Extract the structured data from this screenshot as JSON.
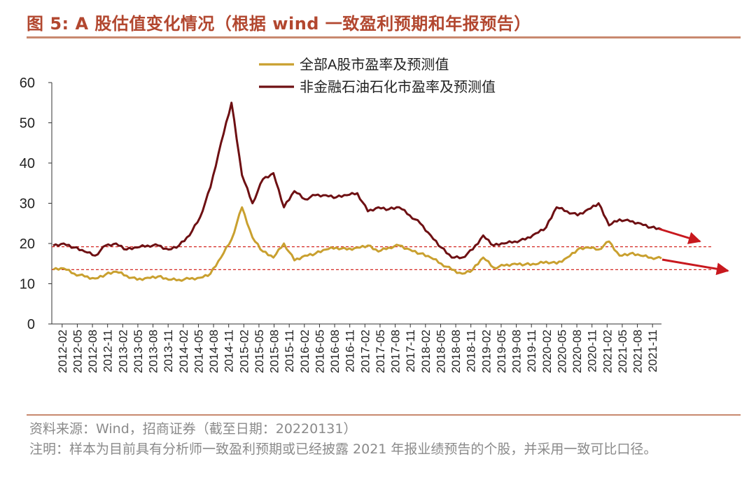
{
  "header": {
    "title": "图 5:  A 股估值变化情况（根据 wind 一致盈利预期和年报预告）"
  },
  "footer": {
    "source": "资料来源：Wind，招商证券（截至日期：20220131）",
    "note": "注明：样本为目前具有分析师一致盈利预期或已经披露 2021 年报业绩预告的个股，并采用一致可比口径。"
  },
  "colors": {
    "series_all_a": "#C9A02F",
    "series_non_fin": "#6E1013",
    "guide_line": "#D42A25",
    "arrow": "#C8181E",
    "accent": "#B2472F"
  },
  "chart_data": {
    "type": "line",
    "title": "",
    "xlabel": "",
    "ylabel": "",
    "ylim": [
      0,
      60
    ],
    "yticks": [
      0,
      10,
      20,
      30,
      40,
      50,
      60
    ],
    "legend_position": "top-center",
    "grid": false,
    "x_tick_labels": [
      "2012-02",
      "2012-05",
      "2012-08",
      "2012-11",
      "2013-02",
      "2013-05",
      "2013-08",
      "2013-11",
      "2014-02",
      "2014-05",
      "2014-08",
      "2014-11",
      "2015-02",
      "2015-05",
      "2015-08",
      "2015-11",
      "2016-02",
      "2016-05",
      "2016-08",
      "2016-11",
      "2017-02",
      "2017-05",
      "2017-08",
      "2017-11",
      "2018-02",
      "2018-05",
      "2018-08",
      "2018-11",
      "2019-02",
      "2019-05",
      "2019-08",
      "2019-11",
      "2020-02",
      "2020-05",
      "2020-08",
      "2020-11",
      "2021-02",
      "2021-05",
      "2021-08",
      "2021-11"
    ],
    "reference_lines": [
      19.2,
      13.5
    ],
    "series": [
      {
        "name": "全部A股市盈率及预测值",
        "values": [
          13.5,
          13.8,
          12.5,
          11.8,
          11.3,
          12.3,
          13.0,
          12.0,
          11.0,
          11.5,
          11.8,
          11.0,
          11.0,
          11.2,
          11.5,
          12.5,
          16.5,
          21.0,
          29.0,
          21.5,
          18.0,
          16.5,
          20.0,
          15.8,
          17.0,
          17.5,
          18.5,
          19.0,
          18.5,
          19.0,
          19.5,
          18.0,
          19.0,
          19.5,
          18.5,
          17.5,
          16.5,
          15.0,
          13.5,
          12.5,
          13.5,
          16.5,
          14.0,
          14.5,
          15.0,
          14.8,
          14.8,
          15.5,
          15.0,
          16.5,
          18.5,
          19.0,
          18.5,
          20.5,
          17.0,
          17.5,
          17.0,
          16.5,
          16.3
        ],
        "color": "#C9A02F"
      },
      {
        "name": "非金融石油石化市盈率及预测值",
        "values": [
          19.5,
          20.0,
          19.0,
          18.0,
          17.0,
          19.5,
          20.0,
          18.5,
          19.0,
          19.5,
          19.5,
          18.5,
          19.5,
          22.0,
          26.5,
          34.0,
          45.0,
          55.0,
          37.0,
          30.0,
          36.0,
          37.5,
          29.0,
          33.0,
          31.0,
          32.0,
          32.0,
          31.5,
          32.0,
          32.5,
          28.0,
          29.0,
          28.5,
          29.0,
          27.0,
          25.0,
          22.0,
          19.0,
          16.5,
          16.5,
          18.5,
          22.0,
          19.5,
          20.0,
          20.5,
          21.0,
          22.5,
          24.0,
          29.0,
          28.0,
          27.0,
          28.5,
          30.0,
          24.5,
          26.0,
          25.5,
          25.0,
          24.0,
          23.5
        ],
        "color": "#6E1013"
      }
    ]
  }
}
